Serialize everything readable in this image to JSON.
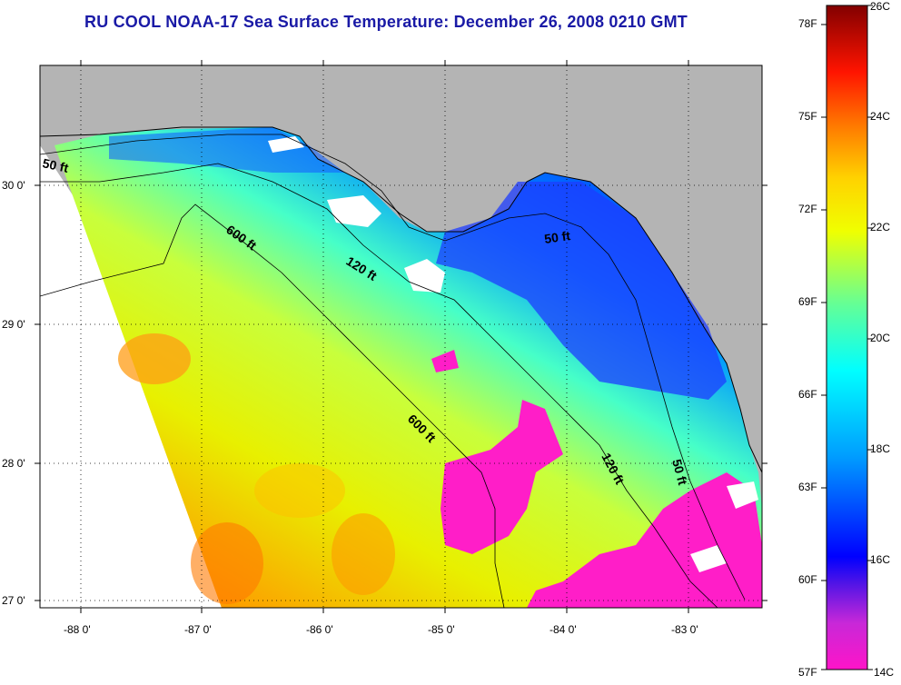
{
  "title": "RU COOL  NOAA-17  Sea Surface Temperature:  December 26, 2008 0210 GMT",
  "axes": {
    "lat_labels": [
      "30 0'",
      "29 0'",
      "28 0'",
      "27 0'"
    ],
    "lon_labels": [
      "-88 0'",
      "-87 0'",
      "-86 0'",
      "-85 0'",
      "-84 0'",
      "-83 0'"
    ]
  },
  "isobath_labels": {
    "nw_50": "50 ft",
    "e_50": "50 ft",
    "se_50": "50 ft",
    "mid_120": "120 ft",
    "se_120": "120 ft",
    "nw_600": "600 ft",
    "mid_600": "600 ft"
  },
  "colorbar": {
    "fahrenheit": [
      "78F",
      "75F",
      "72F",
      "69F",
      "66F",
      "63F",
      "60F",
      "57F"
    ],
    "celsius": [
      "26C",
      "24C",
      "22C",
      "20C",
      "18C",
      "16C",
      "14C"
    ]
  },
  "colors": {
    "land": "#b4b4b4",
    "title": "#1a1aa6",
    "cloud": "#ffffff"
  }
}
